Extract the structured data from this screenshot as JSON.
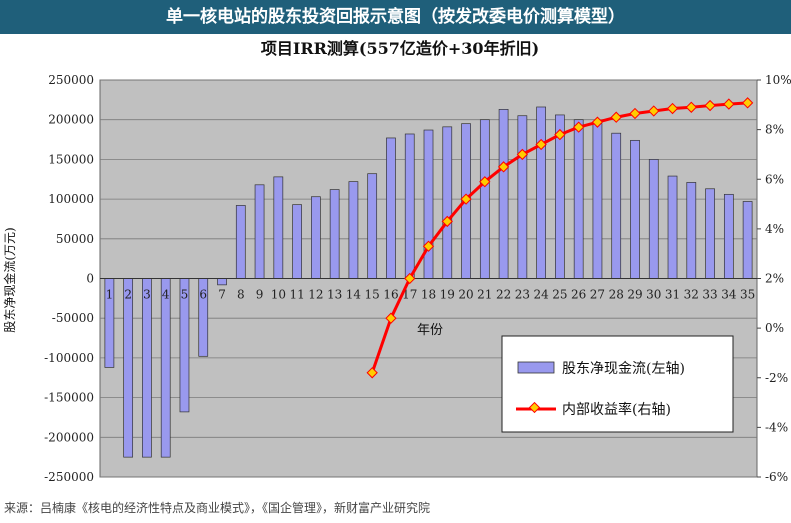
{
  "banner": {
    "title": "单一核电站的股东投资回报示意图（按发改委电价测算模型）"
  },
  "source": {
    "text": "来源：吕楠康《核电的经济性特点及商业模式》，《国企管理》，新财富产业研究院"
  },
  "chart_data": {
    "type": "bar+line",
    "title": "项目IRR测算(557亿造价+30年折旧)",
    "xlabel": "年份",
    "ylabel": "股东净现金流(万元)",
    "ylim": [
      -250000,
      250000
    ],
    "y2lim": [
      -6,
      10
    ],
    "yticks": [
      "250000",
      "200000",
      "150000",
      "100000",
      "50000",
      "0",
      "-50000",
      "-100000",
      "-150000",
      "-200000",
      "-250000"
    ],
    "y2ticks": [
      "10%",
      "8%",
      "6%",
      "4%",
      "2%",
      "0%",
      "-2%",
      "-4%",
      "-6%"
    ],
    "grid": "horizontal",
    "legend_position": "bottom-right",
    "categories": [
      "1",
      "2",
      "3",
      "4",
      "5",
      "6",
      "7",
      "8",
      "9",
      "10",
      "11",
      "12",
      "13",
      "14",
      "15",
      "16",
      "17",
      "18",
      "19",
      "20",
      "21",
      "22",
      "23",
      "24",
      "25",
      "26",
      "27",
      "28",
      "29",
      "30",
      "31",
      "32",
      "33",
      "34",
      "35"
    ],
    "series": [
      {
        "name": "股东净现金流(左轴)",
        "kind": "bar",
        "axis": "left",
        "color": "#9999ee",
        "values": [
          -112000,
          -225000,
          -225000,
          -225000,
          -168000,
          -98000,
          -8000,
          92000,
          118000,
          128000,
          93000,
          103000,
          112000,
          122000,
          132000,
          177000,
          182000,
          187000,
          191000,
          195000,
          200000,
          213000,
          205000,
          216000,
          206000,
          200000,
          195000,
          183000,
          174000,
          150000,
          129000,
          121000,
          113000,
          106000,
          97000
        ]
      },
      {
        "name": "内部收益率(右轴)",
        "kind": "line",
        "axis": "right",
        "color": "#ff0000",
        "marker_color": "#ffcc00",
        "x": [
          "15",
          "16",
          "17",
          "18",
          "19",
          "20",
          "21",
          "22",
          "23",
          "24",
          "25",
          "26",
          "27",
          "28",
          "29",
          "30",
          "31",
          "32",
          "33",
          "34",
          "35"
        ],
        "values": [
          -1.8,
          0.4,
          2.0,
          3.3,
          4.3,
          5.2,
          5.9,
          6.5,
          7.0,
          7.4,
          7.8,
          8.1,
          8.3,
          8.5,
          8.65,
          8.75,
          8.85,
          8.9,
          8.97,
          9.03,
          9.08
        ]
      }
    ]
  }
}
